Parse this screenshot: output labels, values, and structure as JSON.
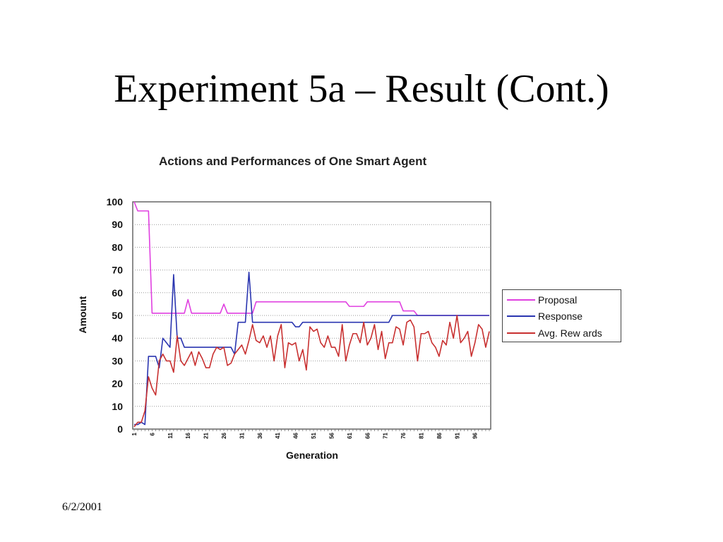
{
  "slide": {
    "title": "Experiment 5a – Result (Cont.)",
    "date": "6/2/2001"
  },
  "chart_data": {
    "type": "line",
    "title": "Actions and Performances of One Smart Agent",
    "xlabel": "Generation",
    "ylabel": "Amount",
    "ylim": [
      0,
      100
    ],
    "yticks": [
      0,
      10,
      20,
      30,
      40,
      50,
      60,
      70,
      80,
      90,
      100
    ],
    "xticks": [
      "1",
      "6",
      "11",
      "16",
      "21",
      "26",
      "31",
      "36",
      "41",
      "46",
      "51",
      "56",
      "61",
      "66",
      "71",
      "76",
      "81",
      "86",
      "91",
      "96"
    ],
    "x": [
      1,
      2,
      3,
      4,
      5,
      6,
      7,
      8,
      9,
      10,
      11,
      12,
      13,
      14,
      15,
      16,
      17,
      18,
      19,
      20,
      21,
      22,
      23,
      24,
      25,
      26,
      27,
      28,
      29,
      30,
      31,
      32,
      33,
      34,
      35,
      36,
      37,
      38,
      39,
      40,
      41,
      42,
      43,
      44,
      45,
      46,
      47,
      48,
      49,
      50,
      51,
      52,
      53,
      54,
      55,
      56,
      57,
      58,
      59,
      60,
      61,
      62,
      63,
      64,
      65,
      66,
      67,
      68,
      69,
      70,
      71,
      72,
      73,
      74,
      75,
      76,
      77,
      78,
      79,
      80,
      81,
      82,
      83,
      84,
      85,
      86,
      87,
      88,
      89,
      90,
      91,
      92,
      93,
      94,
      95,
      96,
      97,
      98,
      99,
      100
    ],
    "grid": true,
    "legend_position": "right",
    "series": [
      {
        "name": "Proposal",
        "color": "#e040e0",
        "values": [
          100,
          96,
          96,
          96,
          96,
          51,
          51,
          51,
          51,
          51,
          51,
          51,
          51,
          51,
          51,
          57,
          51,
          51,
          51,
          51,
          51,
          51,
          51,
          51,
          51,
          55,
          51,
          51,
          51,
          51,
          51,
          51,
          51,
          51,
          56,
          56,
          56,
          56,
          56,
          56,
          56,
          56,
          56,
          56,
          56,
          56,
          56,
          56,
          56,
          56,
          56,
          56,
          56,
          56,
          56,
          56,
          56,
          56,
          56,
          56,
          54,
          54,
          54,
          54,
          54,
          56,
          56,
          56,
          56,
          56,
          56,
          56,
          56,
          56,
          56,
          52,
          52,
          52,
          52,
          50,
          50,
          50,
          50,
          50,
          50,
          50,
          50,
          50,
          50,
          50,
          50,
          50,
          50,
          50,
          50,
          50,
          50,
          50,
          50,
          50
        ]
      },
      {
        "name": "Response",
        "color": "#2a35b0",
        "values": [
          2,
          2,
          3,
          2,
          32,
          32,
          32,
          27,
          40,
          38,
          36,
          68,
          40,
          40,
          36,
          36,
          36,
          36,
          36,
          36,
          36,
          36,
          36,
          36,
          36,
          36,
          36,
          36,
          33,
          47,
          47,
          47,
          69,
          47,
          47,
          47,
          47,
          47,
          47,
          47,
          47,
          47,
          47,
          47,
          47,
          45,
          45,
          47,
          47,
          47,
          47,
          47,
          47,
          47,
          47,
          47,
          47,
          47,
          47,
          47,
          47,
          47,
          47,
          47,
          47,
          47,
          47,
          47,
          47,
          47,
          47,
          47,
          50,
          50,
          50,
          50,
          50,
          50,
          50,
          50,
          50,
          50,
          50,
          50,
          50,
          50,
          50,
          50,
          50,
          50,
          50,
          50,
          50,
          50,
          50,
          50,
          50,
          50,
          50,
          50
        ]
      },
      {
        "name": "Avg. Rew ards",
        "color": "#c83030",
        "values": [
          1,
          3,
          3,
          8,
          23,
          18,
          15,
          30,
          33,
          30,
          30,
          25,
          41,
          30,
          28,
          31,
          34,
          28,
          34,
          31,
          27,
          27,
          33,
          36,
          35,
          36,
          28,
          29,
          33,
          35,
          37,
          33,
          39,
          46,
          39,
          38,
          41,
          36,
          41,
          30,
          41,
          46,
          27,
          38,
          37,
          38,
          30,
          35,
          26,
          45,
          43,
          44,
          38,
          36,
          41,
          36,
          36,
          32,
          46,
          30,
          37,
          42,
          42,
          38,
          47,
          37,
          40,
          46,
          35,
          43,
          31,
          38,
          38,
          45,
          44,
          37,
          47,
          48,
          45,
          30,
          42,
          42,
          43,
          38,
          36,
          32,
          39,
          37,
          47,
          40,
          50,
          38,
          40,
          43,
          32,
          38,
          46,
          44,
          36,
          43
        ]
      }
    ]
  }
}
